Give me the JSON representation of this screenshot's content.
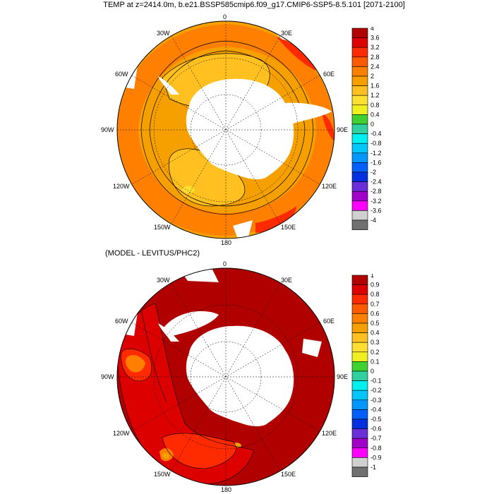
{
  "title": "TEMP at z=2414.0m, b.e21.BSSP585cmip6.f09_g17.CMIP6-SSP5-8.5.101 [2071-2100]",
  "subtitle": "(MODEL - LEVITUS/PHC2)",
  "longitude_labels": {
    "top": [
      "0",
      "30E",
      "60E",
      "90E",
      "120E",
      "150E",
      "180",
      "150W",
      "120W",
      "90W",
      "60W",
      "30W"
    ],
    "bottom": [
      "0",
      "30E",
      "60E",
      "90E",
      "120E",
      "150E",
      "180",
      "150W",
      "120W",
      "90W",
      "60W",
      "30W"
    ]
  },
  "colorbar_top": {
    "labels": [
      "4",
      "3.6",
      "3.2",
      "2.8",
      "2.4",
      "2",
      "1.6",
      "1.2",
      "0.8",
      "0.4",
      "0",
      "-0.4",
      "-0.8",
      "-1.2",
      "-1.6",
      "-2",
      "-2.4",
      "-2.8",
      "-3.2",
      "-3.6",
      "-4"
    ],
    "colors": [
      "#b00000",
      "#dc0000",
      "#ff2a00",
      "#ff5a00",
      "#ff8000",
      "#f6a000",
      "#ffc020",
      "#ffe030",
      "#f0f020",
      "#40d030",
      "#30d0a0",
      "#00f0f0",
      "#00c8ff",
      "#0098ff",
      "#0060ff",
      "#0030e0",
      "#6a2fd8",
      "#a000c8",
      "#ff00ff",
      "#d0d0d0",
      "#707070"
    ]
  },
  "colorbar_bottom": {
    "labels": [
      "1",
      "0.9",
      "0.8",
      "0.7",
      "0.6",
      "0.5",
      "0.4",
      "0.3",
      "0.2",
      "0.1",
      "0",
      "-0.1",
      "-0.2",
      "-0.3",
      "-0.4",
      "-0.5",
      "-0.6",
      "-0.7",
      "-0.8",
      "-0.9",
      "-1"
    ],
    "colors": [
      "#b00000",
      "#dc0000",
      "#ff2a00",
      "#ff5a00",
      "#ff8000",
      "#f6a000",
      "#ffc020",
      "#ffe030",
      "#f0f020",
      "#40d030",
      "#30d0a0",
      "#00f0f0",
      "#00c8ff",
      "#0098ff",
      "#0060ff",
      "#0030e0",
      "#6a2fd8",
      "#a000c8",
      "#ff00ff",
      "#d0d0d0",
      "#707070"
    ]
  },
  "colors": {
    "land": "#ffffff",
    "top_base": "#f6a000",
    "top_warm": "#ff8000",
    "top_cool": "#ffc020",
    "top_peak": "#ffe030",
    "top_hot": "#ff2a00",
    "bottom_base": "#b00000",
    "bottom_mid": "#dc0000",
    "bottom_warm": "#ff2a00",
    "bottom_pale": "#ff8000",
    "bottom_light": "#f6a000"
  }
}
